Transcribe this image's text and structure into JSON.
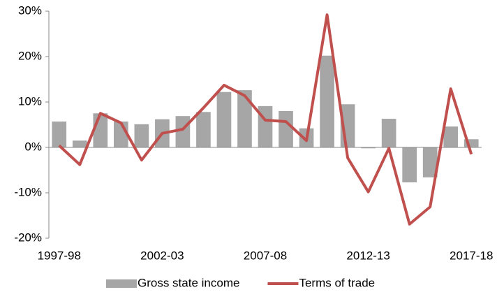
{
  "chart_data": {
    "type": "bar-line",
    "categories": [
      "1997-98",
      null,
      null,
      null,
      null,
      "2002-03",
      null,
      null,
      null,
      null,
      "2007-08",
      null,
      null,
      null,
      null,
      "2012-13",
      null,
      null,
      null,
      null,
      "2017-18"
    ],
    "series": [
      {
        "name": "Gross state income",
        "type": "bar",
        "color": "#a6a6a6",
        "values": [
          5.7,
          1.5,
          7.5,
          5.7,
          5.1,
          6.2,
          6.9,
          7.8,
          12.2,
          12.6,
          9.1,
          8.0,
          4.2,
          20.2,
          9.5,
          -0.2,
          6.3,
          -7.7,
          -6.6,
          4.6,
          1.8
        ]
      },
      {
        "name": "Terms of trade",
        "type": "line",
        "color": "#c0504d",
        "values": [
          0.4,
          -3.8,
          7.5,
          5.4,
          -2.8,
          3.1,
          4.0,
          8.7,
          13.7,
          11.4,
          6.0,
          5.7,
          1.5,
          29.2,
          -2.3,
          -9.8,
          -0.2,
          -16.9,
          -13.1,
          12.9,
          -1.5
        ]
      }
    ],
    "ylim": [
      -20,
      30
    ],
    "yticks": [
      {
        "value": -20,
        "label": "-20%"
      },
      {
        "value": -10,
        "label": "-10%"
      },
      {
        "value": 0,
        "label": "0%"
      },
      {
        "value": 10,
        "label": "10%"
      },
      {
        "value": 20,
        "label": "20%"
      },
      {
        "value": 30,
        "label": "30%"
      }
    ],
    "grid": false,
    "legend": "bottom"
  }
}
